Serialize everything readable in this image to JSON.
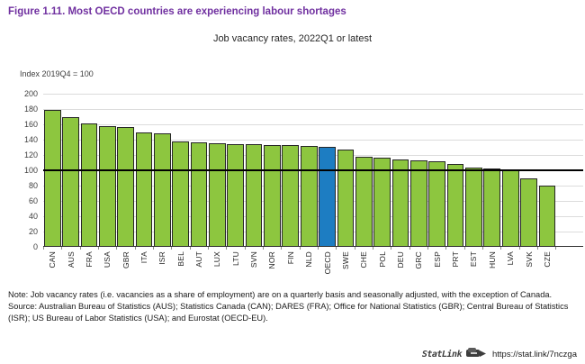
{
  "header": {
    "title": "Figure 1.11. Most OECD countries are experiencing labour shortages",
    "subtitle": "Job vacancy rates, 2022Q1 or latest"
  },
  "theme": {
    "title_color": "#7030a0"
  },
  "chart_data": {
    "type": "bar",
    "title": "Job vacancy rates, 2022Q1 or latest",
    "unit_label": "Index 2019Q4 = 100",
    "categories": [
      "CAN",
      "AUS",
      "FRA",
      "USA",
      "GBR",
      "ITA",
      "ISR",
      "BEL",
      "AUT",
      "LUX",
      "LTU",
      "SVN",
      "NOR",
      "FIN",
      "NLD",
      "OECD",
      "SWE",
      "CHE",
      "POL",
      "DEU",
      "GRC",
      "ESP",
      "PRT",
      "EST",
      "HUN",
      "LVA",
      "SVK",
      "CZE"
    ],
    "values": [
      179,
      170,
      161,
      158,
      156,
      150,
      148,
      138,
      137,
      135,
      134,
      134,
      133,
      133,
      132,
      131,
      127,
      118,
      117,
      114,
      113,
      112,
      108,
      104,
      102,
      101,
      89,
      80
    ],
    "highlight_category": "OECD",
    "reference_line": 100,
    "ylim": [
      0,
      200
    ],
    "ytick_step": 20,
    "grid": "horizontal",
    "legend": "none",
    "colors": {
      "bar": "#8dc63f",
      "highlight_bar": "#1d7dc2",
      "bar_outline": "#262626",
      "reference_line": "#000000",
      "gridline": "#dcdcdc"
    }
  },
  "footer": {
    "note": "Note: Job vacancy rates (i.e. vacancies as a share of employment) are on a quarterly basis and seasonally adjusted, with the exception of Canada.",
    "source": "Source: Australian Bureau of Statistics (AUS); Statistics Canada (CAN); DARES (FRA); Office for National Statistics (GBR); Central Bureau of Statistics (ISR); US Bureau of Labor Statistics (USA); and Eurostat (OECD-EU).",
    "statlink_label": "StatLink",
    "statlink_url": "https://stat.link/7nczga"
  }
}
